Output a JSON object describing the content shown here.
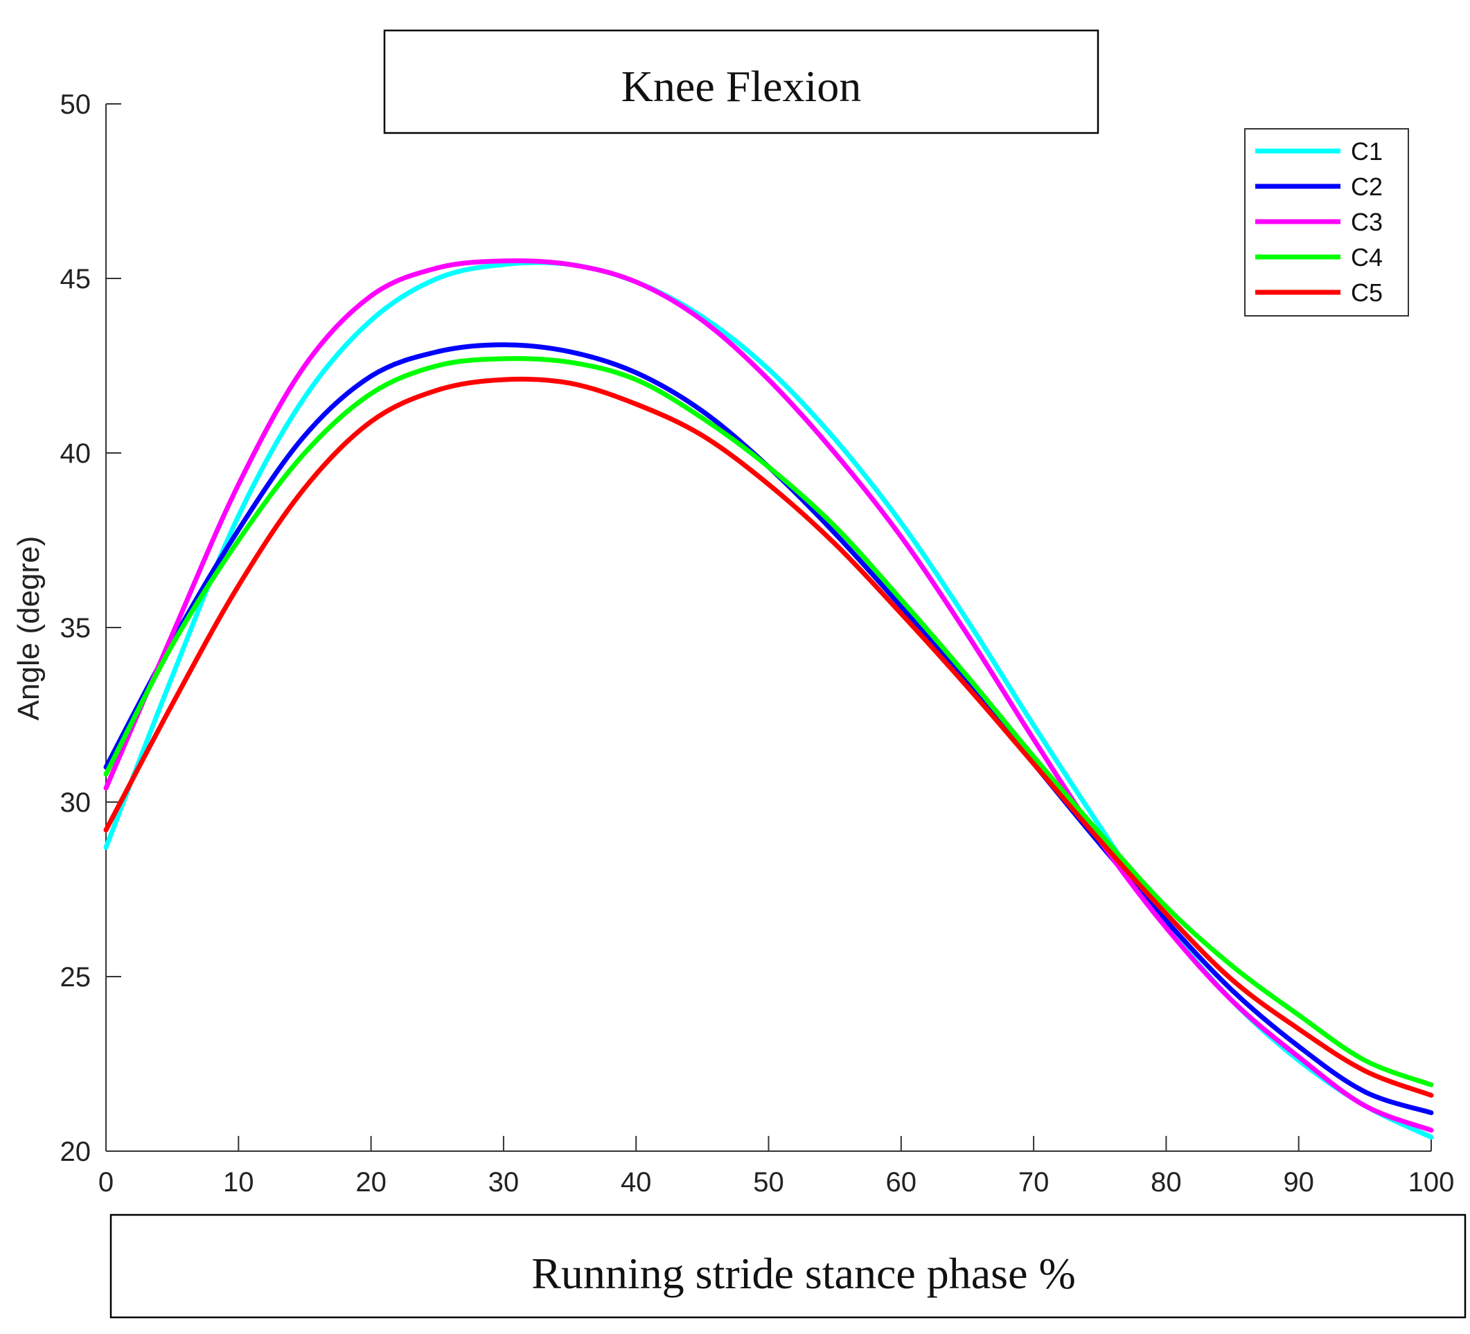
{
  "chart_data": {
    "type": "line",
    "title": "Knee Flexion",
    "xlabel": "Running stride stance phase %",
    "ylabel": "Angle (degre)",
    "xlim": [
      0,
      100
    ],
    "ylim": [
      20,
      50
    ],
    "xticks": [
      0,
      10,
      20,
      30,
      40,
      50,
      60,
      70,
      80,
      90,
      100
    ],
    "yticks": [
      20,
      25,
      30,
      35,
      40,
      45,
      50
    ],
    "grid": false,
    "legend_position": "top-right",
    "x": [
      0,
      5,
      10,
      15,
      20,
      25,
      30,
      35,
      40,
      45,
      50,
      55,
      60,
      65,
      70,
      75,
      80,
      85,
      90,
      95,
      100
    ],
    "series": [
      {
        "name": "C1",
        "color": "#00FFFF",
        "values": [
          28.7,
          33.6,
          38.2,
          41.6,
          43.8,
          45.0,
          45.4,
          45.4,
          44.9,
          43.9,
          42.4,
          40.4,
          38.0,
          35.2,
          32.2,
          29.3,
          26.5,
          24.3,
          22.6,
          21.3,
          20.4
        ]
      },
      {
        "name": "C2",
        "color": "#0000FF",
        "values": [
          31.0,
          34.6,
          37.8,
          40.5,
          42.2,
          42.9,
          43.1,
          42.9,
          42.3,
          41.2,
          39.6,
          37.7,
          35.6,
          33.4,
          31.1,
          28.8,
          26.6,
          24.6,
          23.0,
          21.7,
          21.1
        ]
      },
      {
        "name": "C3",
        "color": "#FF00FF",
        "values": [
          30.4,
          34.8,
          39.1,
          42.5,
          44.5,
          45.3,
          45.5,
          45.4,
          44.9,
          43.8,
          42.1,
          40.0,
          37.6,
          34.8,
          31.8,
          28.9,
          26.4,
          24.3,
          22.7,
          21.3,
          20.6
        ]
      },
      {
        "name": "C4",
        "color": "#00FF00",
        "values": [
          30.8,
          34.5,
          37.5,
          40.0,
          41.7,
          42.5,
          42.7,
          42.6,
          42.1,
          41.0,
          39.6,
          37.9,
          35.8,
          33.6,
          31.3,
          29.1,
          27.0,
          25.3,
          23.9,
          22.6,
          21.9
        ]
      },
      {
        "name": "C5",
        "color": "#FF0000",
        "values": [
          29.2,
          32.8,
          36.2,
          39.0,
          40.9,
          41.8,
          42.1,
          42.0,
          41.4,
          40.5,
          39.1,
          37.4,
          35.4,
          33.3,
          31.1,
          28.9,
          26.8,
          24.9,
          23.5,
          22.3,
          21.6
        ]
      }
    ]
  }
}
